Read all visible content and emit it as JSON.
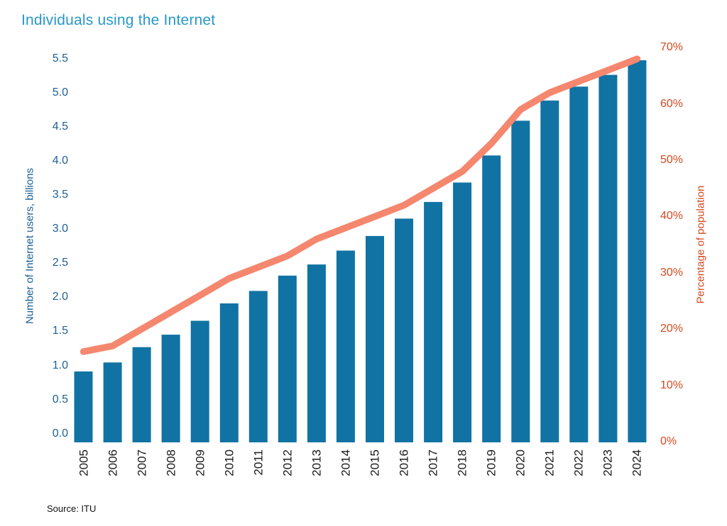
{
  "title": "Individuals using the Internet",
  "source": "Source: ITU",
  "colors": {
    "title": "#2898c8",
    "bar": "#1173a3",
    "line": "#f5876f",
    "left_axis": "#1d6095",
    "right_axis": "#d4491e",
    "x_labels": "#1a1a1a"
  },
  "chart_data": {
    "type": "bar",
    "subtype": "bar-plus-line-dual-axis",
    "title": "Individuals using the Internet",
    "categories": [
      "2005",
      "2006",
      "2007",
      "2008",
      "2009",
      "2010",
      "2011",
      "2012",
      "2013",
      "2014",
      "2015",
      "2016",
      "2017",
      "2018",
      "2019",
      "2020",
      "2021",
      "2022",
      "2023",
      "2024"
    ],
    "series": [
      {
        "name": "Number of Internet users, billions",
        "type": "bar",
        "axis": "left",
        "values": [
          1.02,
          1.15,
          1.37,
          1.55,
          1.75,
          2.0,
          2.18,
          2.4,
          2.56,
          2.76,
          2.97,
          3.22,
          3.46,
          3.74,
          4.13,
          4.63,
          4.92,
          5.12,
          5.29,
          5.5
        ]
      },
      {
        "name": "Percentage of population",
        "type": "line",
        "axis": "right",
        "values": [
          16,
          17,
          20,
          23,
          26,
          29,
          31,
          33,
          36,
          38,
          40,
          42,
          45,
          48,
          53,
          59,
          62,
          64,
          66,
          68
        ]
      }
    ],
    "left_axis": {
      "label": "Number of Internet users, billions",
      "range": [
        0,
        5.5
      ],
      "tick_step": 0.5,
      "ticks": [
        "0.0",
        "0.5",
        "1.0",
        "1.5",
        "2.0",
        "2.5",
        "3.0",
        "3.5",
        "4.0",
        "4.5",
        "5.0",
        "5.5"
      ]
    },
    "right_axis": {
      "label": "Percentage of population",
      "range": [
        0,
        70
      ],
      "tick_step": 10,
      "ticks": [
        "0%",
        "10%",
        "20%",
        "30%",
        "40%",
        "50%",
        "60%",
        "70%"
      ]
    },
    "grid": false,
    "legend": false
  }
}
